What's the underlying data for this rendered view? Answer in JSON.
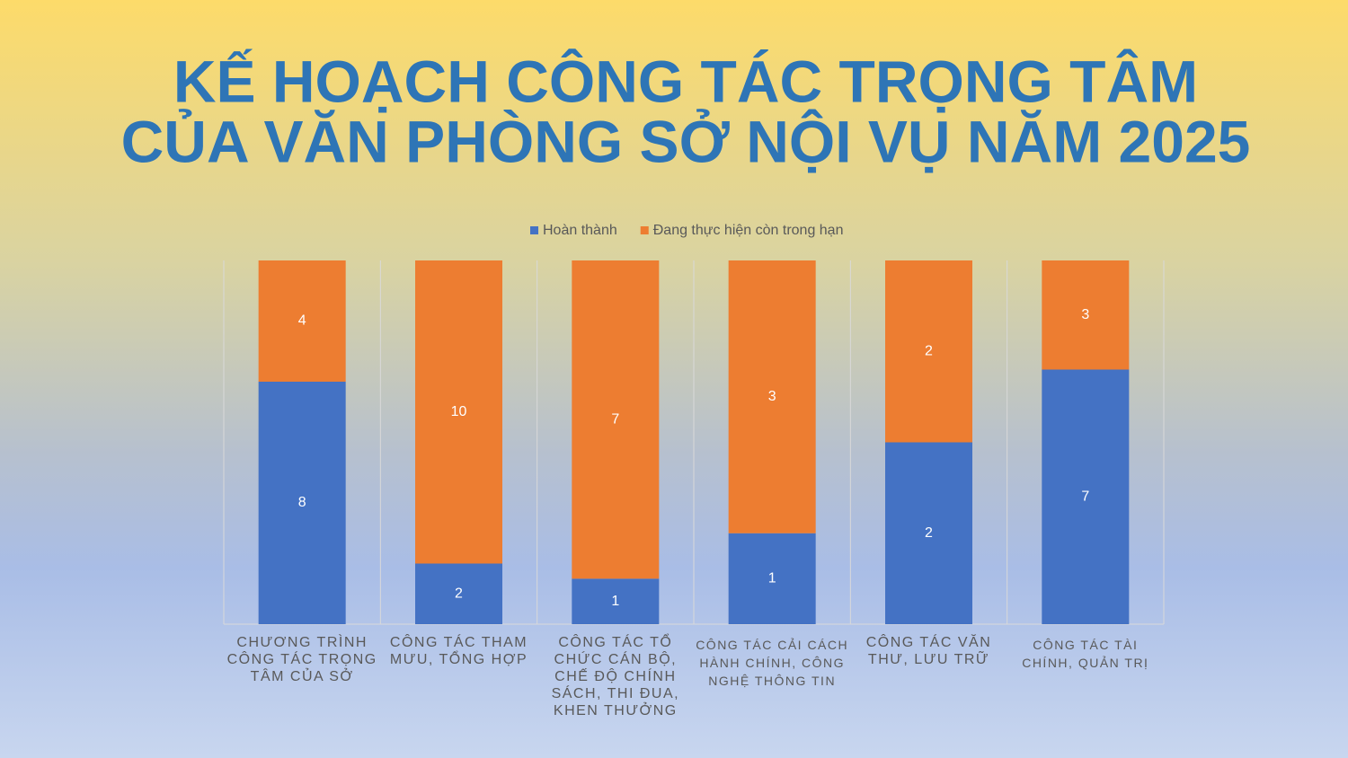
{
  "chart_data": {
    "type": "bar",
    "stacking": "percent",
    "title": [
      "KẾ HOẠCH CÔNG TÁC TRỌNG TÂM",
      "CỦA VĂN PHÒNG SỞ NỘI VỤ NĂM 2025"
    ],
    "categories": [
      "CHƯƠNG TRÌNH CÔNG TÁC TRỌNG TÂM CỦA SỞ",
      "CÔNG TÁC THAM MƯU, TỔNG HỢP",
      "CÔNG TÁC TỔ CHỨC CÁN BỘ, CHẾ ĐỘ CHÍNH SÁCH, THI ĐUA, KHEN THƯỞNG",
      "CÔNG TÁC CẢI CÁCH HÀNH CHÍNH, CÔNG NGHỆ THÔNG TIN",
      "CÔNG TÁC VĂN THƯ, LƯU TRỮ",
      "CÔNG TÁC TÀI CHÍNH, QUẢN TRỊ"
    ],
    "series": [
      {
        "name": "Hoàn thành",
        "color": "#4472c4",
        "values": [
          8,
          2,
          1,
          1,
          2,
          7
        ]
      },
      {
        "name": "Đang thực hiện còn trong hạn",
        "color": "#ed7d31",
        "values": [
          4,
          10,
          7,
          3,
          2,
          3
        ]
      }
    ],
    "legend": "top"
  }
}
